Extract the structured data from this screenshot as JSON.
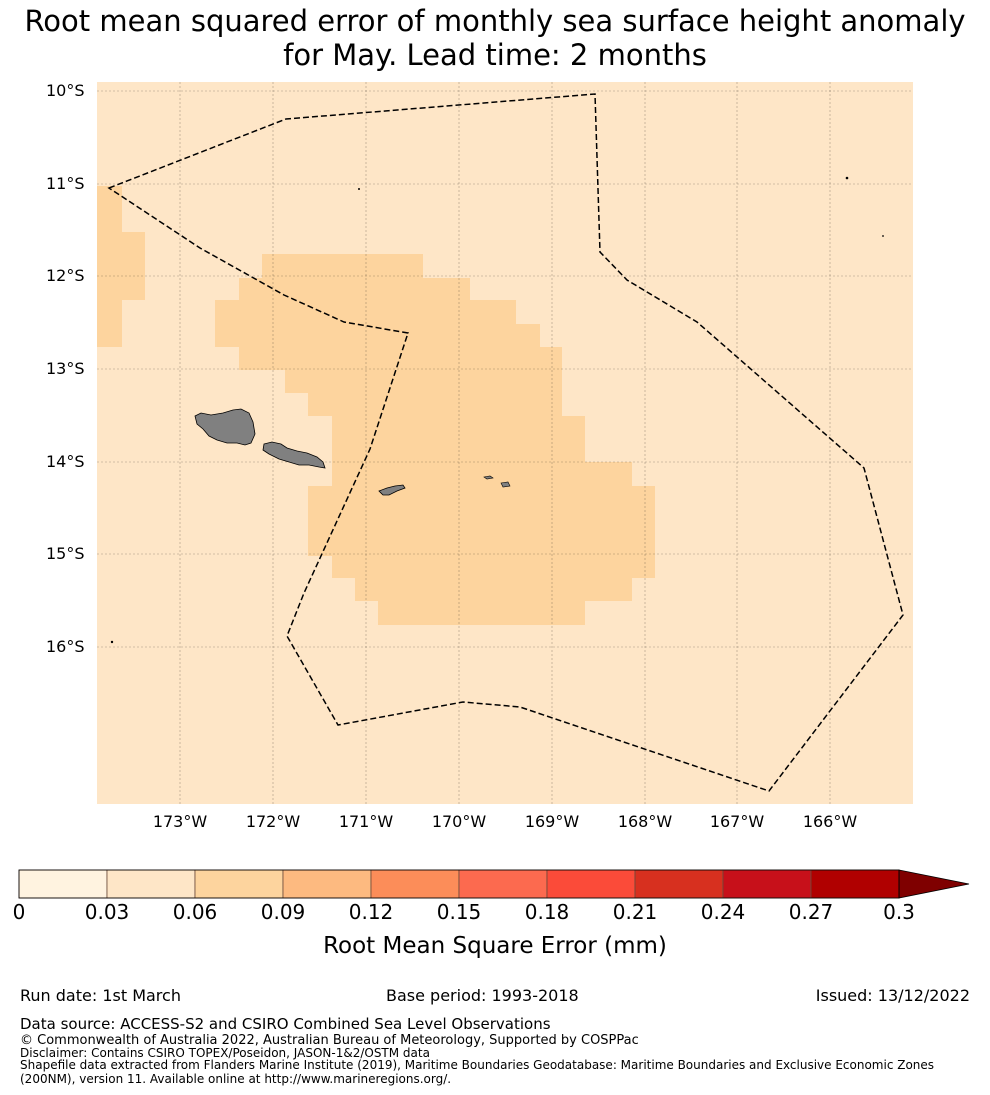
{
  "title": {
    "line1": "Root mean squared error of monthly sea surface height anomaly",
    "line2": "for May. Lead time: 2 months"
  },
  "map": {
    "ocean_color": "#fee6c7",
    "cell_color": "#fdd49e",
    "land_color": "#808080",
    "lat_labels": [
      "10°S",
      "11°S",
      "12°S",
      "13°S",
      "14°S",
      "15°S",
      "16°S"
    ],
    "lon_labels": [
      "173°W",
      "172°W",
      "171°W",
      "170°W",
      "169°W",
      "168°W",
      "167°W",
      "166°W"
    ]
  },
  "colorbar": {
    "colors": [
      "#fff3e0",
      "#fee6c7",
      "#fdd49e",
      "#fdba80",
      "#fc8d59",
      "#fc6a4f",
      "#fb4b39",
      "#d7301f",
      "#c7101a",
      "#b00000"
    ],
    "extend_color": "#7f0000",
    "ticks": [
      "0",
      "0.03",
      "0.06",
      "0.09",
      "0.12",
      "0.15",
      "0.18",
      "0.21",
      "0.24",
      "0.27",
      "0.3"
    ],
    "label": "Root Mean Square Error (mm)"
  },
  "footer": {
    "run_date": "Run date: 1st March",
    "base_period": "Base period: 1993-2018",
    "issued": "Issued: 13/12/2022",
    "data_source": "Data source: ACCESS-S2 and CSIRO Combined Sea Level Observations",
    "copyright": "© Commonwealth of Australia 2022, Australian Bureau of Meteorology, Supported by COSPPac",
    "disclaimer": "Disclaimer: Contains CSIRO TOPEX/Poseidon, JASON-1&2/OSTM data",
    "shapefile_1": "Shapefile data extracted from Flanders Marine Institute (2019), Maritime Boundaries Geodatabase: Maritime Boundaries and Exclusive Economic Zones",
    "shapefile_2": "(200NM), version 11. Available online at http://www.marineregions.org/."
  }
}
